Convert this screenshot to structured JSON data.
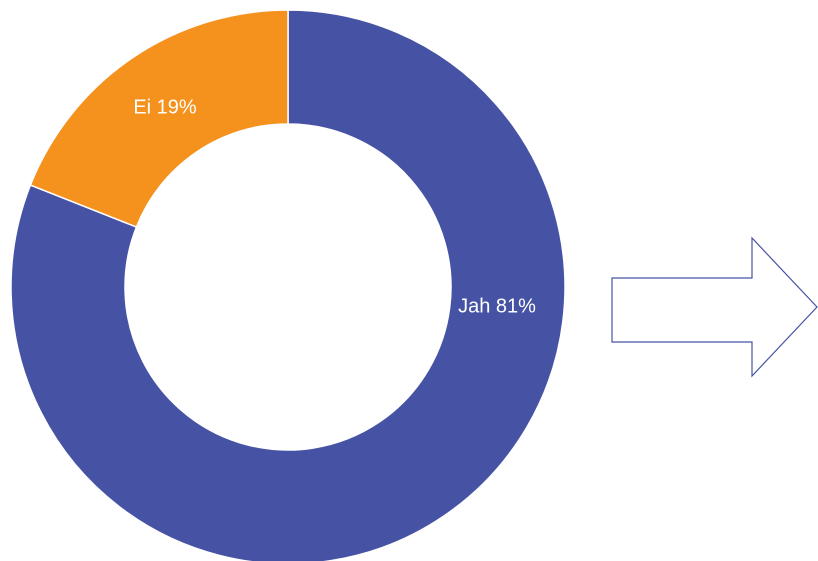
{
  "chart_data": {
    "type": "donut",
    "values": [
      81,
      19
    ],
    "value_labels": [
      "Jah 81%",
      "Ei 19%"
    ],
    "colors": [
      "#4653a4",
      "#f5921e"
    ]
  }
}
